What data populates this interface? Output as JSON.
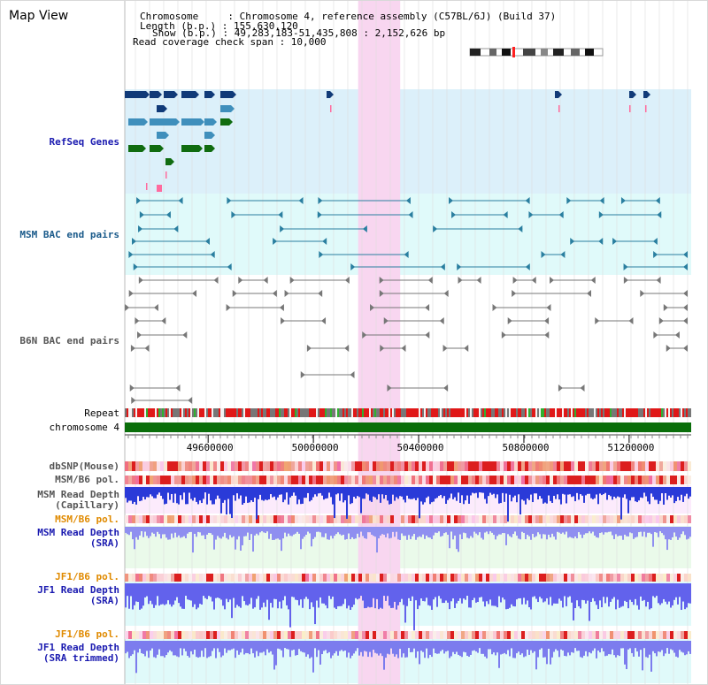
{
  "panel_title": "Map View",
  "info": {
    "chromosome": "Chromosome     : Chromosome 4, reference assembly (C57BL/6J) (Build 37)",
    "length": "Length (b.p.) : 155,630,120",
    "show": "Show (b.p.) : 49,283,183-51,435,808 : 2,152,626 bp",
    "span": "Read coverage check span : 10,000"
  },
  "tracks": {
    "refseq": "RefSeq Genes",
    "msm_bac": "MSM BAC end pairs",
    "b6n_bac": "B6N BAC end pairs",
    "repeat": "Repeat",
    "chrom": "chromosome 4",
    "dbsnp": "dbSNP(Mouse)",
    "msm_b6_pol_1": "MSM/B6 pol.",
    "msm_depth_cap_1": "MSM Read Depth",
    "msm_depth_cap_2": "(Capillary)",
    "msm_b6_pol_2": "MSM/B6 pol.",
    "msm_depth_sra_1": "MSM Read Depth",
    "msm_depth_sra_2": "(SRA)",
    "jf1_b6_pol_1": "JF1/B6 pol.",
    "jf1_depth_sra_1": "JF1 Read Depth",
    "jf1_depth_sra_2": "(SRA)",
    "jf1_b6_pol_2": "JF1/B6 pol.",
    "jf1_depth_trim_1": "JF1 Read Depth",
    "jf1_depth_trim_2": "(SRA trimmed)"
  },
  "scale": {
    "start_bp": 49283183,
    "end_bp": 51435808,
    "ticks": [
      "49600000",
      "50000000",
      "50400000",
      "50800000",
      "51200000"
    ]
  },
  "highlight": {
    "start_bp": 50170000,
    "end_bp": 50330000
  },
  "colors": {
    "refseq_bg": "#dcf0fa",
    "msm_bac_bg": "#e0fafa",
    "highlight": "#f8d6f0",
    "gene_navy": "#103a78",
    "gene_blue": "#3f8fbc",
    "gene_green": "#106c10",
    "bac_teal": "#2a7fa0",
    "bac_gray": "#777777",
    "chrom_bar": "#0a6e0a",
    "label_blue": "#1a1ab0",
    "label_orange": "#e08a00"
  }
}
